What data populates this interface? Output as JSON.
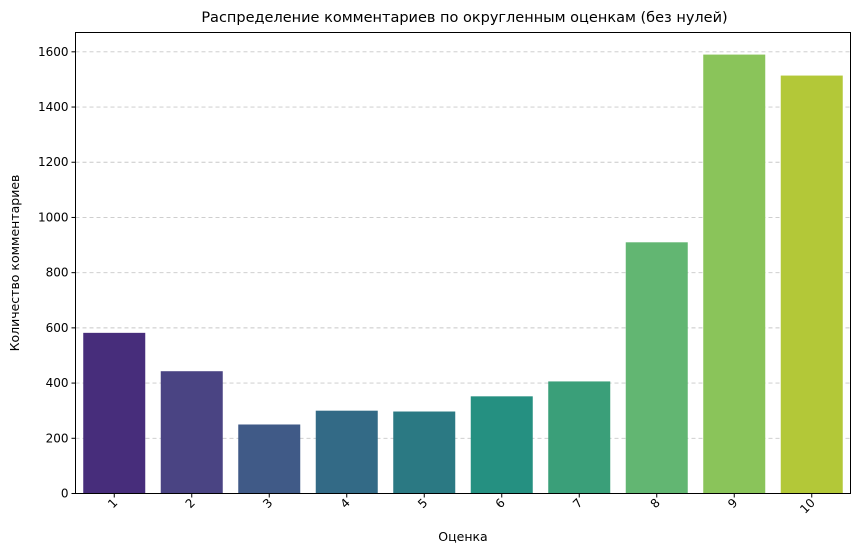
{
  "chart_data": {
    "type": "bar",
    "title": "Распределение комментариев по округленным оценкам (без нулей)",
    "xlabel": "Оценка",
    "ylabel": "Количество комментариев",
    "categories": [
      "1",
      "2",
      "3",
      "4",
      "5",
      "6",
      "7",
      "8",
      "9",
      "10"
    ],
    "values": [
      582,
      443,
      250,
      300,
      297,
      352,
      406,
      910,
      1590,
      1514
    ],
    "ylim": [
      0,
      1670
    ],
    "yticks": [
      0,
      200,
      400,
      600,
      800,
      1000,
      1200,
      1400,
      1600
    ],
    "grid": "y-dashed",
    "colors": [
      "#472d7b",
      "#4a4483",
      "#405a87",
      "#336a86",
      "#2b7983",
      "#259081",
      "#3a9f79",
      "#62b672",
      "#8ac45a",
      "#b3c838"
    ]
  }
}
